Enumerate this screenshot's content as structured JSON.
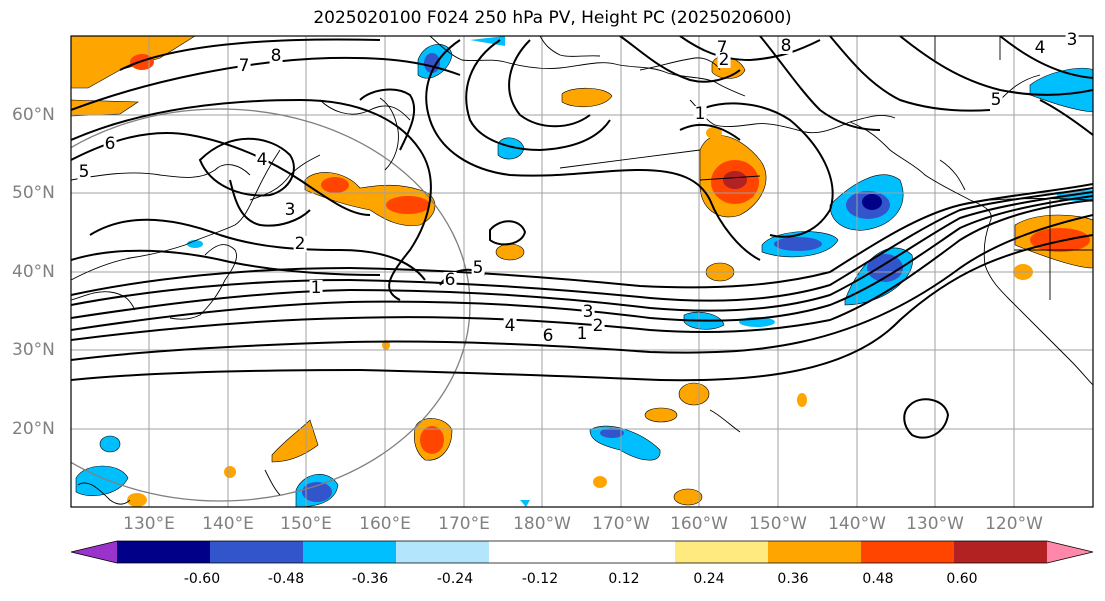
{
  "title": "2025020100 F024 250 hPa PV, Height PC (2025020600)",
  "lon_labels": [
    "130°E",
    "140°E",
    "150°E",
    "160°E",
    "170°E",
    "180°W",
    "170°W",
    "160°W",
    "150°W",
    "140°W",
    "130°W",
    "120°W"
  ],
  "lat_labels": [
    "60°N",
    "50°N",
    "40°N",
    "30°N",
    "20°N"
  ],
  "colorbar": {
    "colors": [
      "#9933cc",
      "#000088",
      "#3355cc",
      "#00bfff",
      "#b3e5fc",
      "#ffffff",
      "#ffffff",
      "#ffea80",
      "#ffa500",
      "#ff4500",
      "#b22222",
      "#ff88aa"
    ],
    "tick_labels": [
      "-0.60",
      "-0.48",
      "-0.36",
      "-0.24",
      "-0.12",
      "0.12",
      "0.24",
      "0.36",
      "0.48",
      "0.60"
    ]
  },
  "contour_labels": [
    "8",
    "7",
    "6",
    "5",
    "4",
    "3",
    "2",
    "1",
    "6",
    "5",
    "4",
    "3",
    "2",
    "1",
    "6",
    "7",
    "8",
    "5",
    "4",
    "3",
    "2",
    "1"
  ],
  "colors": {
    "gridline": "#a0a0a0",
    "coast": "#000000",
    "contour": "#000000",
    "axis_text": "#808080"
  }
}
